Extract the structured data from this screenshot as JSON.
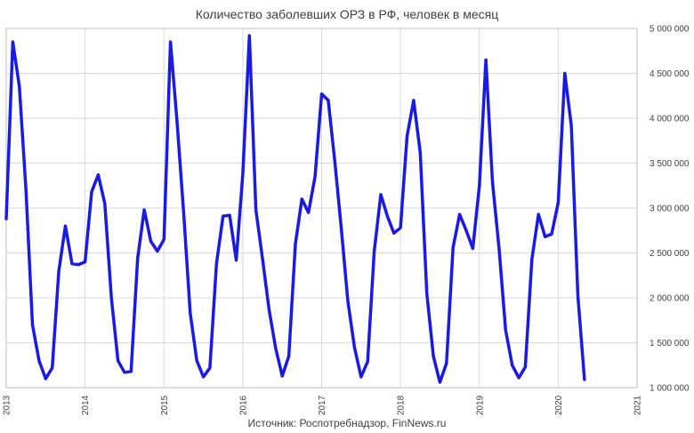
{
  "chart_data": {
    "type": "line",
    "title": "Количество заболевших ОРЗ в РФ, человек в месяц",
    "source": "Источник: Роспотребнадзор, FinNews.ru",
    "xlabel": "",
    "ylabel": "",
    "ylim": [
      1000000,
      5000000
    ],
    "y_ticks": [
      1000000,
      1500000,
      2000000,
      2500000,
      3000000,
      3500000,
      4000000,
      4500000,
      5000000
    ],
    "y_tick_labels": [
      "1 000 000",
      "1 500 000",
      "2 000 000",
      "2 500 000",
      "3 000 000",
      "3 500 000",
      "4 000 000",
      "4 500 000",
      "5 000 000"
    ],
    "x_tick_labels": [
      "2013",
      "2014",
      "2015",
      "2016",
      "2017",
      "2018",
      "2019",
      "2020",
      "2021"
    ],
    "x_range_years": [
      2013,
      2021
    ],
    "y_axis_position": "right",
    "grid": true,
    "color": "#1a1ae6",
    "series": [
      {
        "start": "2013-01",
        "values": [
          2880000,
          4850000,
          4350000,
          3200000,
          1700000,
          1300000,
          1100000,
          1220000,
          2300000,
          2800000,
          2380000,
          2370000,
          2400000,
          3180000,
          3370000,
          3050000,
          2000000,
          1300000,
          1170000,
          1180000,
          2440000,
          2980000,
          2630000,
          2520000,
          2650000,
          4850000,
          3960000,
          2950000,
          1830000,
          1300000,
          1120000,
          1220000,
          2380000,
          2910000,
          2920000,
          2420000,
          3380000,
          4920000,
          2980000,
          2440000,
          1870000,
          1440000,
          1130000,
          1350000,
          2600000,
          3100000,
          2950000,
          3350000,
          4270000,
          4200000,
          3520000,
          2760000,
          1960000,
          1450000,
          1120000,
          1290000,
          2520000,
          3150000,
          2910000,
          2720000,
          2780000,
          3800000,
          4200000,
          3620000,
          2050000,
          1350000,
          1060000,
          1270000,
          2560000,
          2930000,
          2750000,
          2550000,
          3250000,
          4650000,
          3290000,
          2550000,
          1640000,
          1250000,
          1110000,
          1230000,
          2430000,
          2930000,
          2680000,
          2710000,
          3060000,
          4500000,
          3920000,
          2020000,
          1090000
        ]
      }
    ]
  }
}
